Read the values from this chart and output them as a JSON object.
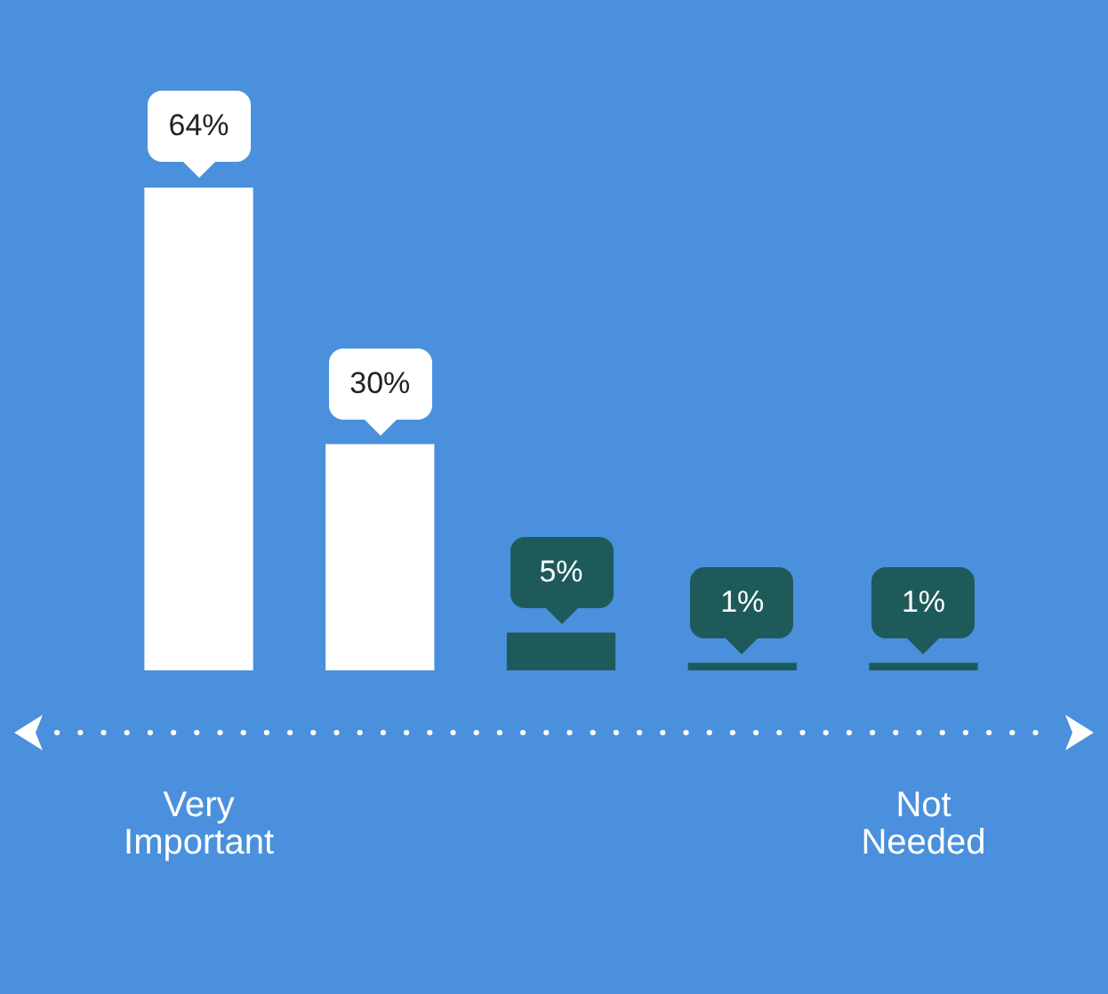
{
  "chart_data": {
    "type": "bar",
    "categories": [
      "Very Important",
      null,
      null,
      null,
      "Not Needed"
    ],
    "values": [
      64,
      30,
      5,
      1,
      1
    ],
    "colors": [
      "#ffffff",
      "#ffffff",
      "#1e5a5a",
      "#1e5a5a",
      "#1e5a5a"
    ],
    "value_labels": [
      "64%",
      "30%",
      "5%",
      "1%",
      "1%"
    ],
    "legend": false,
    "grid": false
  }
}
